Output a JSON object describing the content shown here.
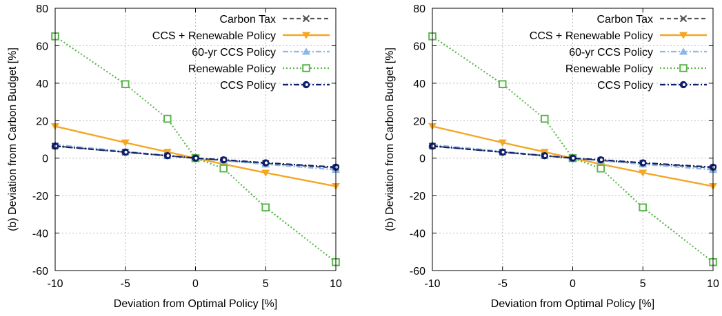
{
  "chart_data": [
    {
      "type": "line",
      "xlabel": "Deviation from Optimal Policy [%]",
      "ylabel": "(b) Deviation from Carbon Budget [%]",
      "xlim": [
        -10,
        10
      ],
      "ylim": [
        -60,
        80
      ],
      "xticks": [
        -10,
        -5,
        0,
        5,
        10
      ],
      "yticks": [
        -60,
        -40,
        -20,
        0,
        20,
        40,
        60,
        80
      ],
      "grid": true,
      "legend_position": "top-right",
      "series": [
        {
          "name": "Carbon Tax",
          "color": "#555555",
          "dash": "dashed",
          "marker": "x",
          "x": [
            -10,
            -5,
            -2,
            0,
            2,
            5,
            10
          ],
          "y": [
            6.5,
            3.2,
            1.3,
            0,
            -1.2,
            -2.8,
            -5.2
          ]
        },
        {
          "name": "CCS + Renewable Policy",
          "color": "#f5a623",
          "dash": "solid",
          "marker": "triangle-down",
          "x": [
            -10,
            -5,
            -2,
            0,
            2,
            5,
            10
          ],
          "y": [
            17,
            8.3,
            3.3,
            0,
            -3.2,
            -7.8,
            -15
          ]
        },
        {
          "name": "60-yr CCS Policy",
          "color": "#8ab8ea",
          "dash": "dashdot",
          "marker": "triangle-up",
          "x": [
            -10,
            -5,
            -2,
            0,
            2,
            5,
            10
          ],
          "y": [
            7.2,
            3.6,
            1.4,
            0,
            -1.3,
            -3.3,
            -6.2
          ]
        },
        {
          "name": "Renewable Policy",
          "color": "#5ab64b",
          "dash": "dotted",
          "marker": "square",
          "x": [
            -10,
            -5,
            -2,
            0,
            2,
            5,
            10
          ],
          "y": [
            65,
            39.5,
            21,
            0,
            -5.5,
            -26.3,
            -55.5
          ]
        },
        {
          "name": "CCS Policy",
          "color": "#0d1c6b",
          "dash": "dashdot",
          "marker": "circle",
          "x": [
            -10,
            -5,
            -2,
            0,
            2,
            5,
            10
          ],
          "y": [
            6.4,
            3.2,
            1.3,
            0,
            -0.9,
            -2.5,
            -4.8
          ]
        }
      ]
    },
    {
      "type": "line",
      "xlabel": "Deviation from Optimal Policy [%]",
      "ylabel": "(b) Deviation from Carbon Budget [%]",
      "xlim": [
        -10,
        10
      ],
      "ylim": [
        -60,
        80
      ],
      "xticks": [
        -10,
        -5,
        0,
        5,
        10
      ],
      "yticks": [
        -60,
        -40,
        -20,
        0,
        20,
        40,
        60,
        80
      ],
      "grid": true,
      "legend_position": "top-right",
      "series": [
        {
          "name": "Carbon Tax",
          "color": "#555555",
          "dash": "dashed",
          "marker": "x",
          "x": [
            -10,
            -5,
            -2,
            0,
            2,
            5,
            10
          ],
          "y": [
            6.5,
            3.2,
            1.3,
            0,
            -1.2,
            -2.8,
            -5.2
          ]
        },
        {
          "name": "CCS + Renewable Policy",
          "color": "#f5a623",
          "dash": "solid",
          "marker": "triangle-down",
          "x": [
            -10,
            -5,
            -2,
            0,
            2,
            5,
            10
          ],
          "y": [
            17,
            8.3,
            3.3,
            0,
            -3.2,
            -7.8,
            -15
          ]
        },
        {
          "name": "60-yr CCS Policy",
          "color": "#8ab8ea",
          "dash": "dashdot",
          "marker": "triangle-up",
          "x": [
            -10,
            -5,
            -2,
            0,
            2,
            5,
            10
          ],
          "y": [
            7.2,
            3.6,
            1.4,
            0,
            -1.3,
            -3.3,
            -6.2
          ]
        },
        {
          "name": "Renewable Policy",
          "color": "#5ab64b",
          "dash": "dotted",
          "marker": "square",
          "x": [
            -10,
            -5,
            -2,
            0,
            2,
            5,
            10
          ],
          "y": [
            65,
            39.5,
            21,
            0,
            -5.5,
            -26.3,
            -55.5
          ]
        },
        {
          "name": "CCS Policy",
          "color": "#0d1c6b",
          "dash": "dashdot",
          "marker": "circle",
          "x": [
            -10,
            -5,
            -2,
            0,
            2,
            5,
            10
          ],
          "y": [
            6.4,
            3.2,
            1.3,
            0,
            -0.9,
            -2.5,
            -4.8
          ]
        }
      ]
    }
  ]
}
